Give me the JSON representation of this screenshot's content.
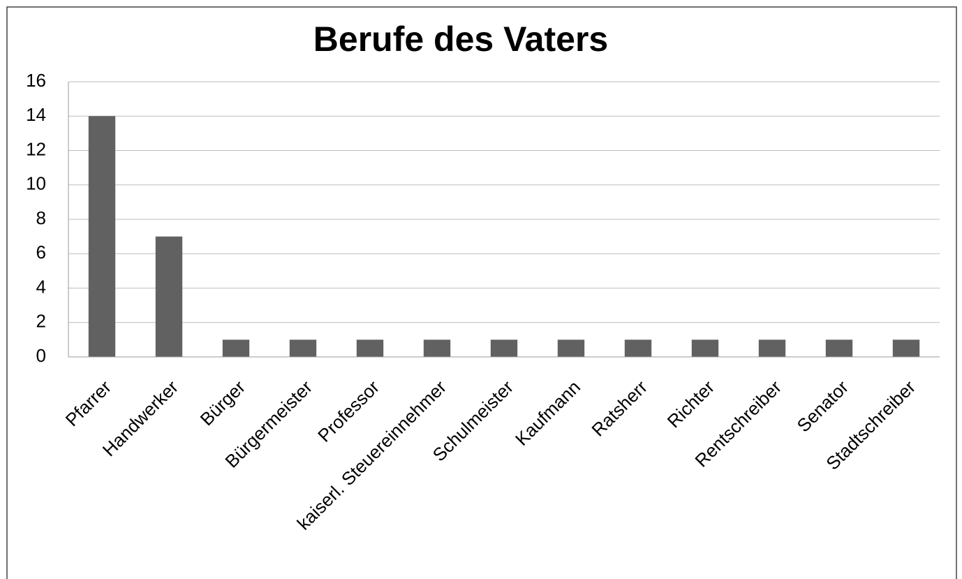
{
  "chart_data": {
    "type": "bar",
    "title": "Berufe des Vaters",
    "categories": [
      "Pfarrer",
      "Handwerker",
      "Bürger",
      "Bürgermeister",
      "Professor",
      "kaiserl. Steuereinnehmer",
      "Schulmeister",
      "Kaufmann",
      "Ratsherr",
      "Richter",
      "Rentschreiber",
      "Senator",
      "Stadtschreiber"
    ],
    "values": [
      14,
      7,
      1,
      1,
      1,
      1,
      1,
      1,
      1,
      1,
      1,
      1,
      1
    ],
    "color": "#616161",
    "ylim": [
      0,
      16
    ],
    "yticks": [
      0,
      2,
      4,
      6,
      8,
      10,
      12,
      14,
      16
    ],
    "grid": true
  }
}
